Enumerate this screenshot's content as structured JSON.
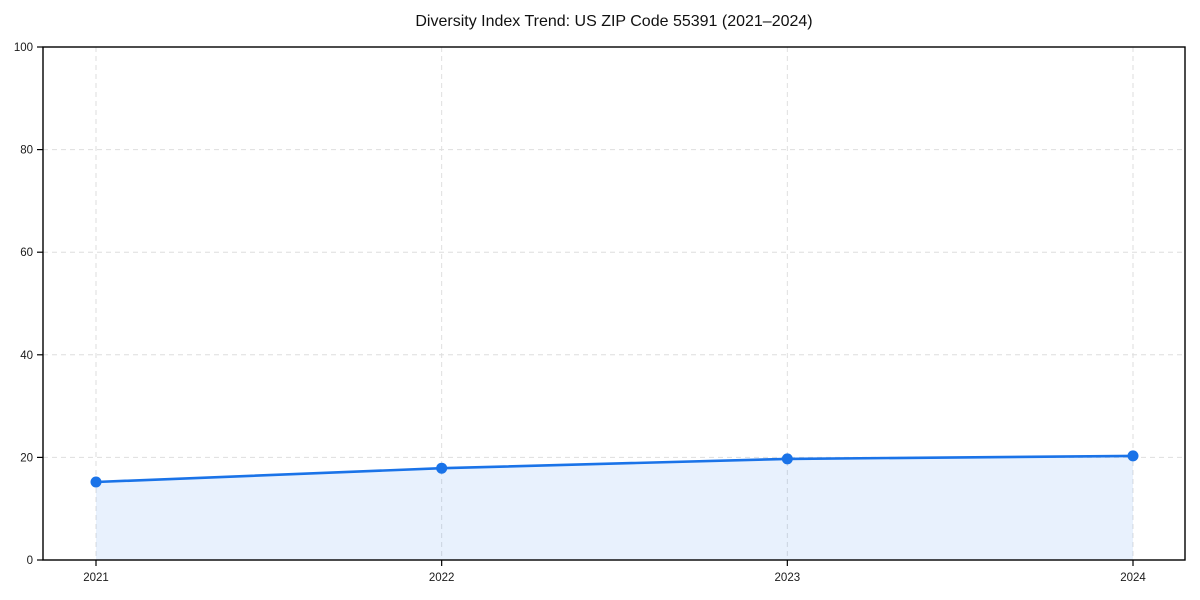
{
  "chart_data": {
    "type": "area",
    "title": "Diversity Index Trend: US ZIP Code 55391 (2021–2024)",
    "x": [
      "2021",
      "2022",
      "2023",
      "2024"
    ],
    "series": [
      {
        "name": "Diversity Index",
        "values": [
          15.2,
          17.9,
          19.7,
          20.3
        ]
      }
    ],
    "xlabel": "",
    "ylabel": "",
    "ylim": [
      0,
      100
    ],
    "yticks": [
      0,
      20,
      40,
      60,
      80,
      100
    ],
    "grid": "dashed",
    "legend": "none",
    "marker": "circle",
    "colors": {
      "line": "#1a73e8",
      "marker": "#1a73e8",
      "fill": "#1a73e8",
      "fill_opacity": 0.1,
      "grid": "#dedede",
      "spine": "#000000",
      "tick_text": "#1a1a1a"
    }
  }
}
